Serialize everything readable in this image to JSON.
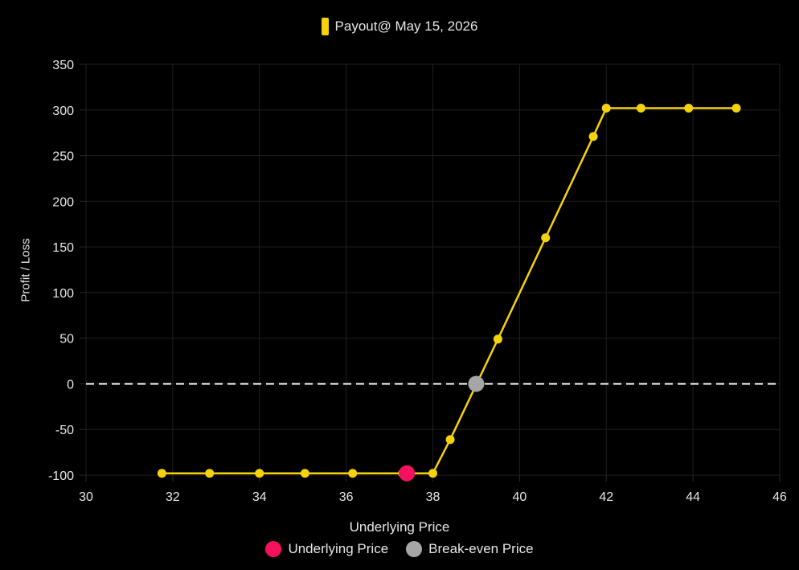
{
  "chart_data": {
    "type": "line",
    "series": [
      {
        "name": "Payout@ May 15, 2026",
        "color": "#f5d20a",
        "x": [
          31.75,
          32.85,
          34.0,
          35.05,
          36.15,
          37.3,
          38.0,
          38.4,
          39.5,
          40.6,
          41.7,
          42.0,
          42.8,
          43.9,
          45.0
        ],
        "y": [
          -98,
          -98,
          -98,
          -98,
          -98,
          -98,
          -98,
          -61,
          49,
          160,
          271,
          302,
          302,
          302,
          302
        ]
      }
    ],
    "markers": [
      {
        "name": "Underlying Price",
        "x": 37.4,
        "y": -98,
        "color": "#f5115e"
      },
      {
        "name": "Break-even Price",
        "x": 39.0,
        "y": 0,
        "color": "#a6a6a6"
      }
    ],
    "reference_line": {
      "y": 0,
      "style": "dashed",
      "color": "#ffffff"
    },
    "xlabel": "Underlying Price",
    "ylabel": "Profit / Loss",
    "xlim": [
      30,
      46
    ],
    "ylim": [
      -100,
      350
    ],
    "xticks": [
      30,
      32,
      34,
      36,
      38,
      40,
      42,
      44,
      46
    ],
    "yticks": [
      -100,
      -50,
      0,
      50,
      100,
      150,
      200,
      250,
      300,
      350
    ],
    "grid": true,
    "legend_position": "top-center"
  }
}
